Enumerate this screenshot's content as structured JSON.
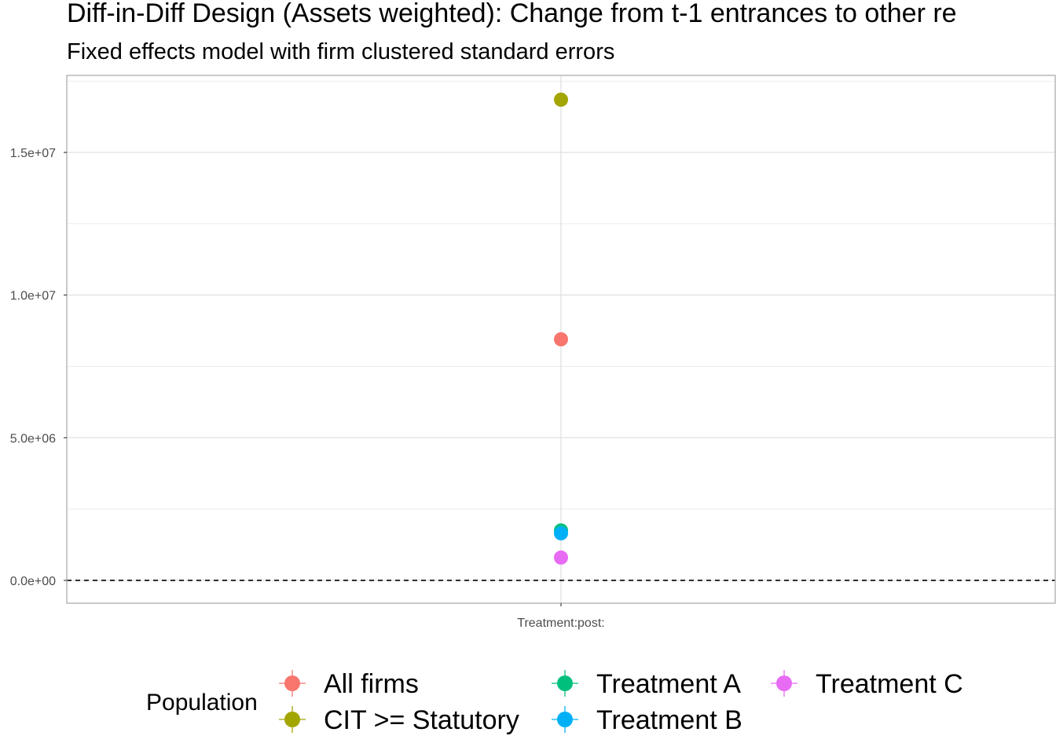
{
  "chart_data": {
    "type": "scatter",
    "title": "Diff-in-Diff Design (Assets weighted): Change from t-1 entrances to other re",
    "subtitle": "Fixed effects model with firm clustered standard errors",
    "xlabel": "",
    "ylabel": "",
    "categories": [
      "Treatment:post:"
    ],
    "ylim": [
      -800000,
      17700000
    ],
    "y_ticks": [
      {
        "value": 0,
        "label": "0.0e+00"
      },
      {
        "value": 5000000,
        "label": "5.0e+06"
      },
      {
        "value": 10000000,
        "label": "1.0e+07"
      },
      {
        "value": 15000000,
        "label": "1.5e+07"
      }
    ],
    "y_minor_ticks": [
      2500000,
      7500000,
      12500000,
      17500000
    ],
    "reference_line": {
      "value": 0,
      "style": "dashed"
    },
    "grid": true,
    "legend": {
      "title": "Population",
      "position": "bottom"
    },
    "series": [
      {
        "name": "All firms",
        "color": "#F8766D",
        "x": "Treatment:post:",
        "y": 8450000
      },
      {
        "name": "CIT >= Statutory",
        "color": "#A3A500",
        "x": "Treatment:post:",
        "y": 16850000
      },
      {
        "name": "Treatment A",
        "color": "#00BF7D",
        "x": "Treatment:post:",
        "y": 1750000
      },
      {
        "name": "Treatment B",
        "color": "#00B0F6",
        "x": "Treatment:post:",
        "y": 1650000
      },
      {
        "name": "Treatment C",
        "color": "#E76BF3",
        "x": "Treatment:post:",
        "y": 800000
      }
    ]
  }
}
